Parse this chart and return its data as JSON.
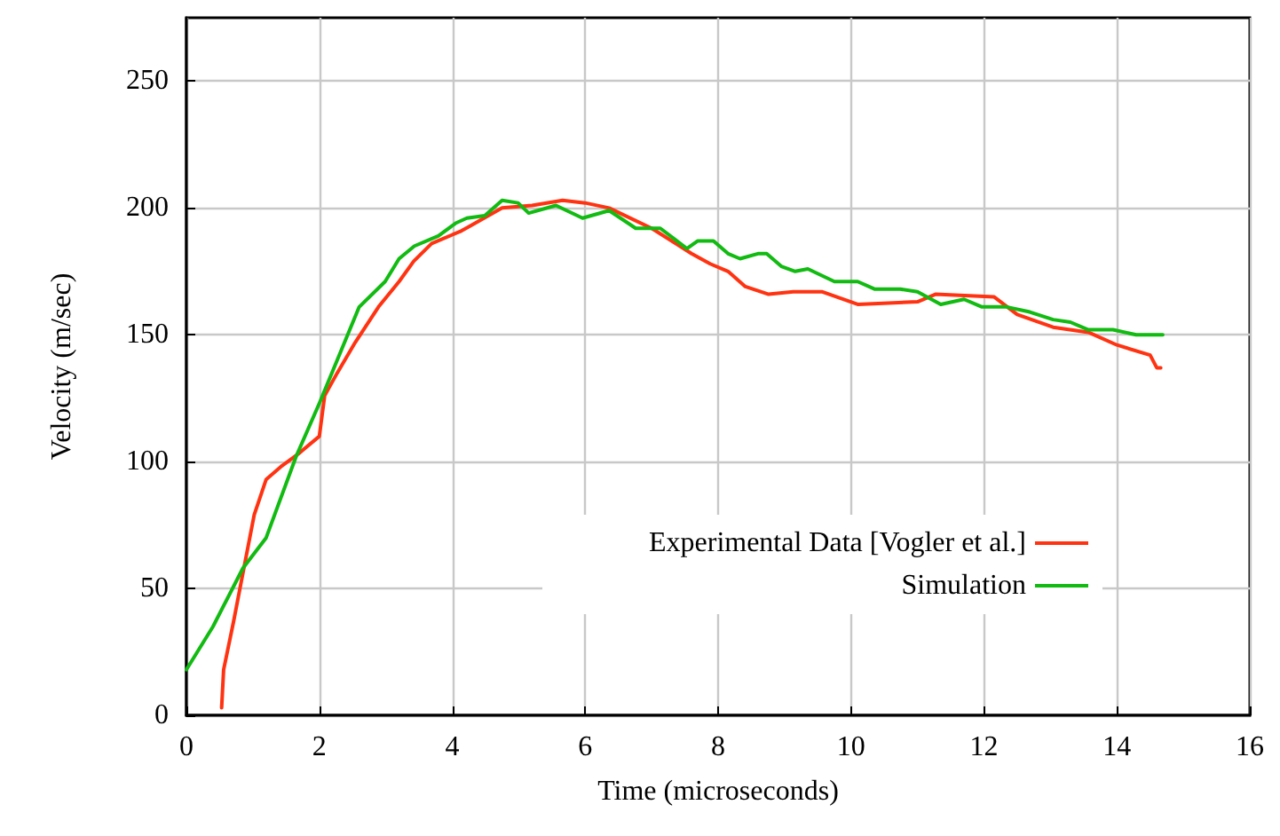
{
  "chart_data": {
    "type": "line",
    "xlabel": "Time (microseconds)",
    "ylabel": "Velocity (m/sec)",
    "xlim": [
      0,
      16
    ],
    "xticks": [
      0,
      2,
      4,
      6,
      8,
      10,
      12,
      14,
      16
    ],
    "ylim": [
      0,
      275
    ],
    "yticks": [
      0,
      50,
      100,
      150,
      200,
      250
    ],
    "grid": true,
    "legend": "bottom right",
    "marker": "none",
    "line_style": "solid",
    "series": [
      {
        "name": "Experimental Data [Vogler et al.]",
        "color": "#ff3311",
        "x": [
          0.53,
          0.56,
          0.71,
          0.85,
          1.02,
          1.2,
          1.42,
          1.68,
          2.0,
          2.08,
          2.27,
          2.54,
          2.89,
          3.2,
          3.42,
          3.69,
          4.14,
          4.75,
          5.2,
          5.66,
          6.0,
          6.36,
          7.0,
          7.6,
          7.88,
          8.15,
          8.41,
          8.76,
          9.13,
          9.56,
          10.1,
          11.0,
          11.27,
          12.15,
          12.5,
          13.04,
          13.57,
          14.0,
          14.5,
          14.6,
          14.66
        ],
        "values": [
          3,
          18,
          37,
          56,
          79,
          93,
          98,
          103,
          110,
          126,
          135,
          147,
          161,
          171,
          179,
          186,
          191,
          200,
          201,
          203,
          202,
          200,
          192,
          182,
          178,
          175,
          169,
          166,
          167,
          167,
          162,
          163,
          166,
          165,
          158,
          153,
          151,
          146,
          142,
          137,
          137
        ]
      },
      {
        "name": "Simulation",
        "color": "#11bb11",
        "x": [
          0,
          0.4,
          0.85,
          1.2,
          1.65,
          2.0,
          2.6,
          2.99,
          3.2,
          3.43,
          3.79,
          4.05,
          4.22,
          4.49,
          4.75,
          4.99,
          5.15,
          5.56,
          5.96,
          6.36,
          6.76,
          7.13,
          7.53,
          7.69,
          7.93,
          8.15,
          8.33,
          8.6,
          8.73,
          8.95,
          9.16,
          9.35,
          9.75,
          10.1,
          10.36,
          10.74,
          11.0,
          11.35,
          11.7,
          11.97,
          12.34,
          12.69,
          13.04,
          13.3,
          13.57,
          13.94,
          14.29,
          14.69
        ],
        "values": [
          18,
          35,
          58,
          70,
          102,
          123,
          161,
          171,
          180,
          185,
          189,
          194,
          196,
          197,
          203,
          202,
          198,
          201,
          196,
          199,
          192,
          192,
          184,
          187,
          187,
          182,
          180,
          182,
          182,
          177,
          175,
          176,
          171,
          171,
          168,
          168,
          167,
          162,
          164,
          161,
          161,
          159,
          156,
          155,
          152,
          152,
          150,
          150
        ]
      }
    ]
  }
}
